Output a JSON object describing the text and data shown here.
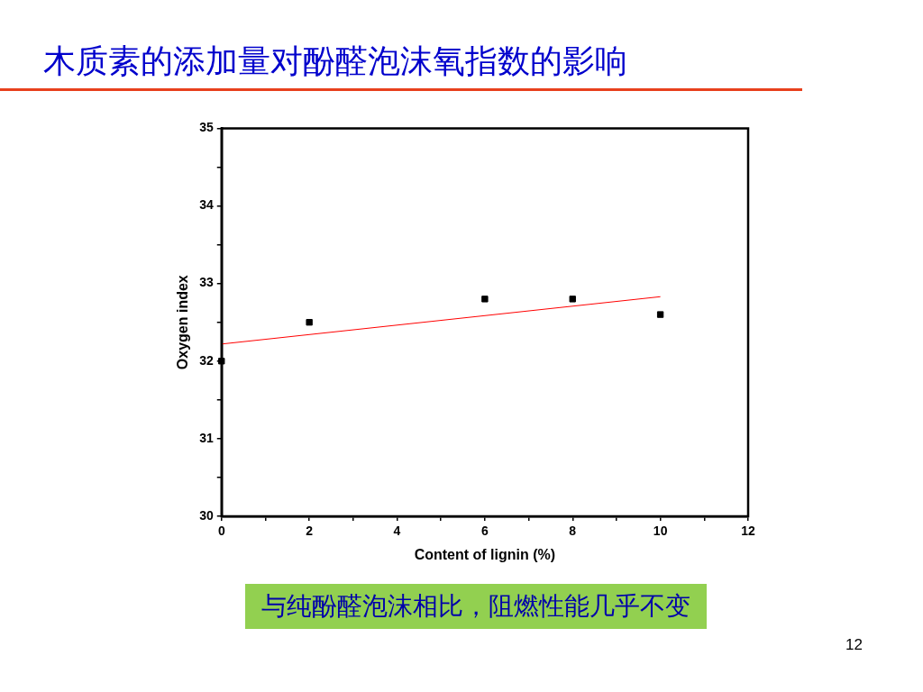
{
  "chart_data": {
    "type": "scatter",
    "title": "木质素的添加量对酚醛泡沫氧指数的影响",
    "xlabel": "Content of lignin (%)",
    "ylabel": "Oxygen index",
    "xlim": [
      0,
      12
    ],
    "xticks": [
      0,
      {
        "value": 1,
        "label": null
      },
      2,
      {
        "value": 3,
        "label": null
      },
      4,
      {
        "value": 5,
        "label": null
      },
      6,
      {
        "value": 7,
        "label": null
      },
      8,
      {
        "value": 9,
        "label": null
      },
      10,
      {
        "value": 11,
        "label": null
      },
      12
    ],
    "ylim": [
      30,
      35
    ],
    "yticks": [
      30,
      {
        "value": 30.5,
        "label": null
      },
      31,
      {
        "value": 31.5,
        "label": null
      },
      32,
      {
        "value": 32.5,
        "label": null
      },
      33,
      {
        "value": 33.5,
        "label": null
      },
      34,
      {
        "value": 34.5,
        "label": null
      },
      35
    ],
    "grid": false,
    "legend": false,
    "marker": "square",
    "series": [
      {
        "type": "scatter",
        "color": "#000000",
        "x": [
          0,
          2,
          6,
          8,
          10
        ],
        "values": [
          32,
          32.5,
          32.8,
          32.8,
          32.6
        ]
      },
      {
        "type": "line",
        "color": "#ff0000",
        "x": [
          0,
          10
        ],
        "values": [
          32.22,
          32.83
        ],
        "marker": "none",
        "line_style": "solid"
      }
    ],
    "annotations": [
      "与纯酚醛泡沫相比，阻燃性能几乎不变",
      "12"
    ]
  }
}
